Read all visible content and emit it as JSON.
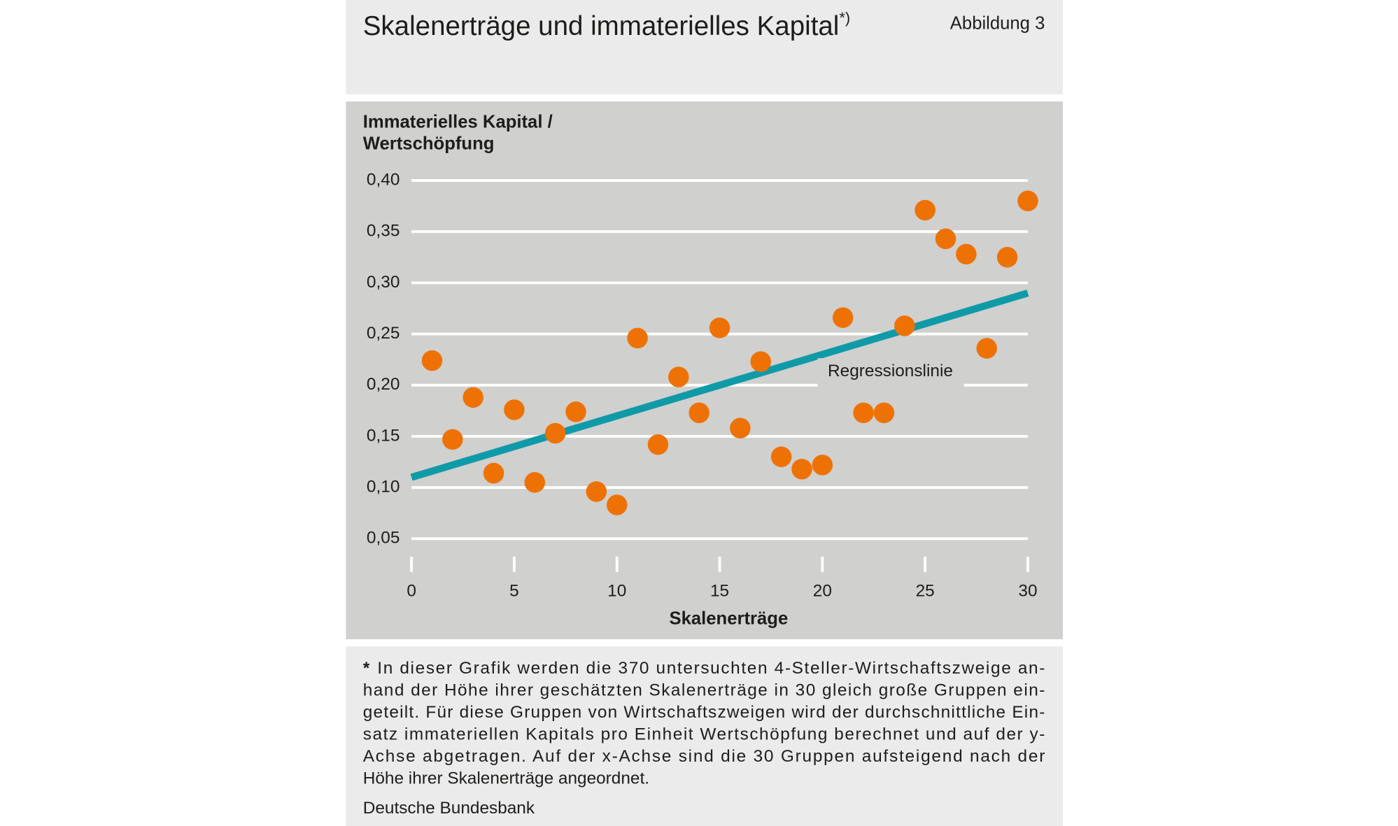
{
  "chart_data": {
    "type": "scatter",
    "title": "Skalenerträge und immaterielles Kapital",
    "title_superscript": "*)",
    "figure_label": "Abbildung 3",
    "ylabel": [
      "Immaterielles Kapital /",
      "Wertschöpfung"
    ],
    "xlabel": "Skalenerträge",
    "x": [
      1,
      2,
      3,
      4,
      5,
      6,
      7,
      8,
      9,
      10,
      11,
      12,
      13,
      14,
      15,
      16,
      17,
      18,
      19,
      20,
      21,
      22,
      23,
      24,
      25,
      26,
      27,
      28,
      29,
      30
    ],
    "values": [
      0.224,
      0.147,
      0.188,
      0.114,
      0.176,
      0.105,
      0.153,
      0.174,
      0.096,
      0.083,
      0.246,
      0.142,
      0.208,
      0.173,
      0.256,
      0.158,
      0.223,
      0.13,
      0.118,
      0.122,
      0.266,
      0.173,
      0.173,
      0.258,
      0.371,
      0.343,
      0.328,
      0.236,
      0.325,
      0.38
    ],
    "color": "#ee7203",
    "regression": {
      "name": "Regressionslinie",
      "x": [
        0,
        30
      ],
      "values": [
        0.11,
        0.29
      ],
      "color": "#0f9aa8"
    },
    "xlim": [
      0,
      30
    ],
    "xticks": [
      0,
      5,
      10,
      15,
      20,
      25,
      30
    ],
    "ylim": [
      0.05,
      0.4
    ],
    "yticks": [
      {
        "value": 0.05,
        "label": "0,05"
      },
      {
        "value": 0.1,
        "label": "0,10"
      },
      {
        "value": 0.15,
        "label": "0,15"
      },
      {
        "value": 0.2,
        "label": "0,20"
      },
      {
        "value": 0.25,
        "label": "0,25"
      },
      {
        "value": 0.3,
        "label": "0,30"
      },
      {
        "value": 0.35,
        "label": "0,35"
      },
      {
        "value": 0.4,
        "label": "0,40"
      }
    ],
    "grid": true,
    "footnote_mark": "*",
    "footnote": [
      "In dieser Grafik werden die 370 untersuchten 4-Steller-Wirtschaftszweige an-",
      "hand der Höhe ihrer geschätzten Skalenerträge in 30 gleich große Gruppen ein-",
      "geteilt. Für diese Gruppen von Wirtschaftszweigen wird der durchschnittliche Ein-",
      "satz immateriellen Kapitals pro Einheit Wertschöpfung berechnet und auf der y-",
      "Achse abgetragen. Auf der x-Achse sind die 30 Gruppen aufsteigend nach der",
      "Höhe ihrer Skalenerträge angeordnet."
    ],
    "source": "Deutsche Bundesbank"
  }
}
